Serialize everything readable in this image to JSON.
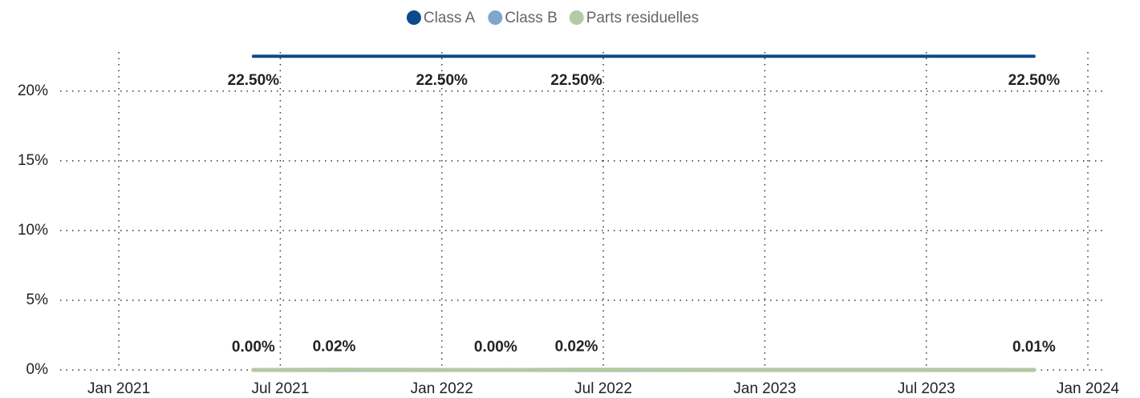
{
  "chart_data": {
    "type": "line",
    "x": [
      "2021-06",
      "2021-09",
      "2022-01",
      "2022-03",
      "2022-06",
      "2023-11"
    ],
    "series": [
      {
        "name": "Class A",
        "color": "#0b4a8c",
        "values": [
          22.5,
          22.5,
          22.5,
          22.5,
          22.5,
          22.5
        ],
        "value_labels": [
          "22.50%",
          null,
          "22.50%",
          null,
          "22.50%",
          "22.50%"
        ]
      },
      {
        "name": "Class B",
        "color": "#7fa6cb",
        "values": [
          0,
          0,
          0,
          0,
          0,
          0
        ]
      },
      {
        "name": "Parts residuelles",
        "color": "#b5c9a4",
        "values": [
          0,
          0.02,
          0.01,
          0,
          0.02,
          0.01
        ],
        "value_labels": [
          "0.00%",
          "0.02%",
          null,
          "0.00%",
          "0.02%",
          "0.01%"
        ]
      }
    ],
    "xlim": [
      "2020-11",
      "2024-01"
    ],
    "xticks": [
      {
        "value": "2021-01",
        "label": "Jan 2021"
      },
      {
        "value": "2021-07",
        "label": "Jul 2021"
      },
      {
        "value": "2022-01",
        "label": "Jan 2022"
      },
      {
        "value": "2022-07",
        "label": "Jul 2022"
      },
      {
        "value": "2023-01",
        "label": "Jan 2023"
      },
      {
        "value": "2023-07",
        "label": "Jul 2023"
      },
      {
        "value": "2024-01",
        "label": "Jan 2024"
      }
    ],
    "ylim": [
      0,
      22.8
    ],
    "yticks": [
      {
        "value": 0,
        "label": "0%"
      },
      {
        "value": 5,
        "label": "5%"
      },
      {
        "value": 10,
        "label": "10%"
      },
      {
        "value": 15,
        "label": "15%"
      },
      {
        "value": 20,
        "label": "20%"
      }
    ],
    "grid": true,
    "legend": "top"
  }
}
